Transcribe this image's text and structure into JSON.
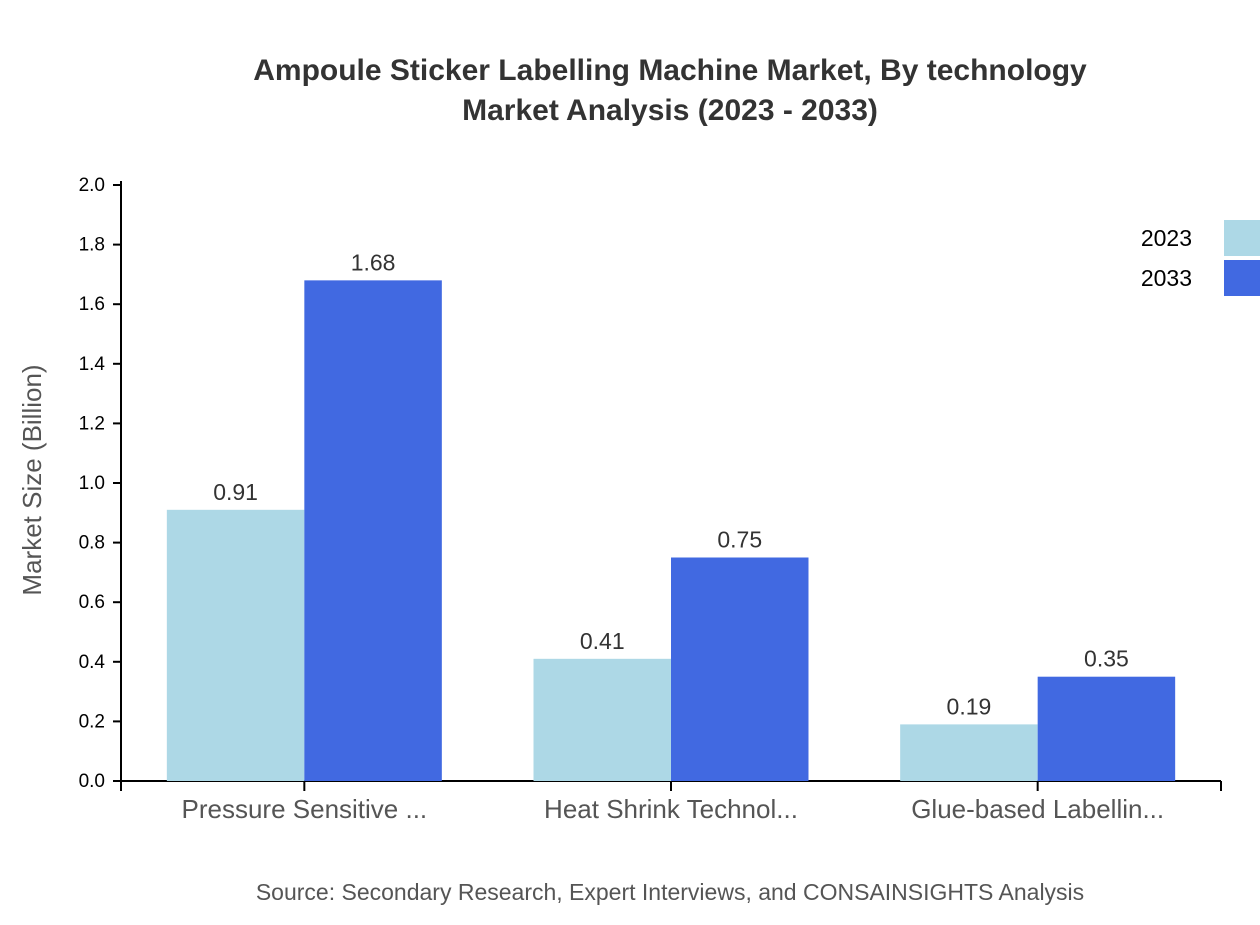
{
  "chart_data": {
    "type": "bar",
    "title": "Ampoule Sticker Labelling Machine Market, By technology",
    "subtitle": "Market Analysis (2023 - 2033)",
    "ylabel": "Market Size (Billion)",
    "xlabel": "",
    "ylim": [
      0,
      2.0
    ],
    "yticks": [
      "0.0",
      "0.2",
      "0.4",
      "0.6",
      "0.8",
      "1.0",
      "1.2",
      "1.4",
      "1.6",
      "1.8",
      "2.0"
    ],
    "categories": [
      "Pressure Sensitive ...",
      "Heat Shrink Technol...",
      "Glue-based Labellin..."
    ],
    "series": [
      {
        "name": "2023",
        "color": "#add8e6",
        "values": [
          0.91,
          0.41,
          0.19
        ]
      },
      {
        "name": "2033",
        "color": "#4169e1",
        "values": [
          1.68,
          0.75,
          0.35
        ]
      }
    ],
    "legend_position": "top-right",
    "grid": false
  },
  "source": "Source: Secondary Research, Expert Interviews, and CONSAINSIGHTS Analysis"
}
